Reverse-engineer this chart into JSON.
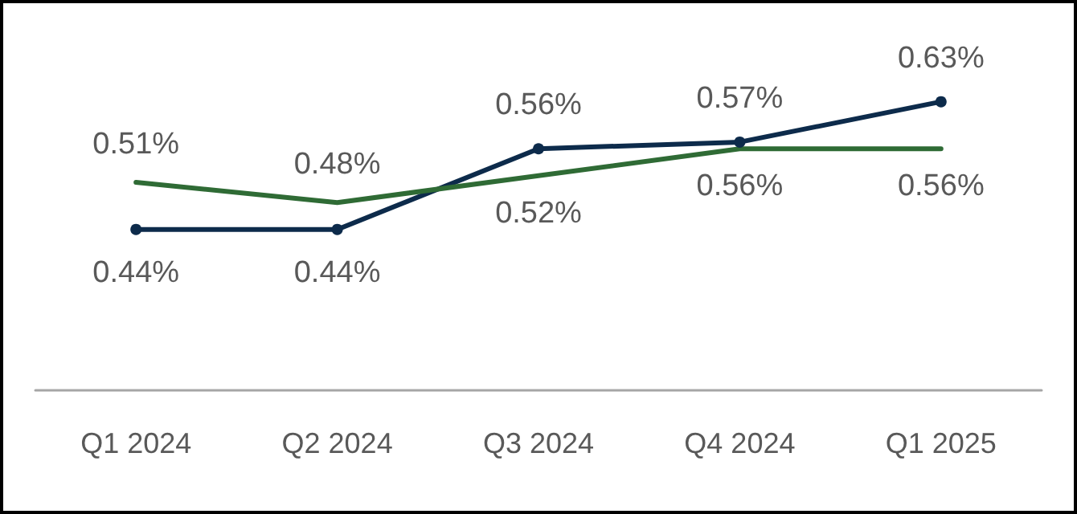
{
  "chart_data": {
    "type": "line",
    "categories": [
      "Q1 2024",
      "Q2 2024",
      "Q3 2024",
      "Q4 2024",
      "Q1 2025"
    ],
    "tick_labels": "x",
    "grid": false,
    "series": [
      {
        "color": "#0d2b4b",
        "marker": "circle",
        "values": [
          0.44,
          0.44,
          0.56,
          0.57,
          0.63
        ],
        "value_labels": [
          "0.44%",
          "0.44%",
          "0.56%",
          "0.57%",
          "0.63%"
        ]
      },
      {
        "color": "#2f6b35",
        "marker": "none",
        "values": [
          0.51,
          0.48,
          0.52,
          0.56,
          0.56
        ],
        "value_labels": [
          "0.51%",
          "0.48%",
          "0.52%",
          "0.56%",
          "0.56%"
        ]
      }
    ]
  }
}
